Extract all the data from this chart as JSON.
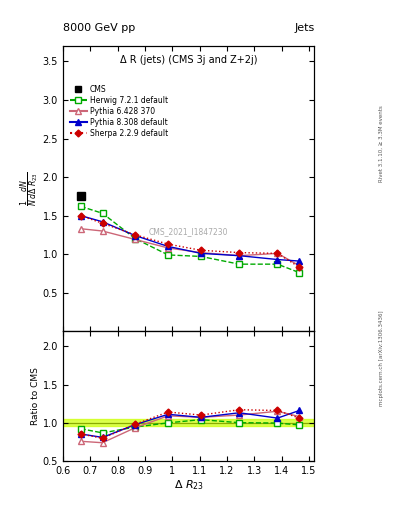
{
  "title_main": "Δ R (jets) (CMS 3j and Z+2j)",
  "header_left": "8000 GeV pp",
  "header_right": "Jets",
  "ylabel_main": "$\\frac{1}{N}\\frac{dN}{d\\Delta\\ R_{23}}$",
  "ylabel_ratio": "Ratio to CMS",
  "xlabel": "$\\Delta\\ R_{23}$",
  "xlim": [
    0.6,
    1.52
  ],
  "ylim_main": [
    0.0,
    3.7
  ],
  "ylim_ratio": [
    0.5,
    2.2
  ],
  "yticks_main": [
    0.5,
    1.0,
    1.5,
    2.0,
    2.5,
    3.0,
    3.5
  ],
  "yticks_ratio": [
    0.5,
    1.0,
    1.5,
    2.0
  ],
  "xticks": [
    0.6,
    0.7,
    0.8,
    0.9,
    1.0,
    1.1,
    1.2,
    1.3,
    1.4,
    1.5
  ],
  "watermark": "CMS_2021_I1847230",
  "right_label_top": "Rivet 3.1.10, ≥ 3.3M events",
  "right_label_bot": "mcplots.cern.ch [arXiv:1306.3436]",
  "cms_x": [
    0.665
  ],
  "cms_y": [
    1.76
  ],
  "herwig_x": [
    0.665,
    0.745,
    0.865,
    0.985,
    1.105,
    1.245,
    1.385,
    1.465
  ],
  "herwig_y": [
    1.62,
    1.53,
    1.2,
    0.99,
    0.97,
    0.87,
    0.87,
    0.76
  ],
  "pythia6_x": [
    0.665,
    0.745,
    0.865,
    0.985,
    1.105,
    1.245,
    1.385,
    1.465
  ],
  "pythia6_y": [
    1.33,
    1.3,
    1.19,
    1.08,
    1.02,
    0.98,
    1.01,
    0.85
  ],
  "pythia8_x": [
    0.665,
    0.745,
    0.865,
    0.985,
    1.105,
    1.245,
    1.385,
    1.465
  ],
  "pythia8_y": [
    1.5,
    1.42,
    1.24,
    1.1,
    1.01,
    0.98,
    0.93,
    0.91
  ],
  "sherpa_x": [
    0.665,
    0.745,
    0.865,
    0.985,
    1.105,
    1.245,
    1.385,
    1.465
  ],
  "sherpa_y": [
    1.5,
    1.4,
    1.25,
    1.13,
    1.05,
    1.02,
    1.01,
    0.83
  ],
  "herwig_ratio": [
    0.921,
    0.866,
    0.943,
    0.998,
    1.04,
    1.0,
    0.995,
    0.97
  ],
  "pythia6_ratio": [
    0.756,
    0.737,
    0.935,
    1.09,
    1.07,
    1.1,
    1.15,
    1.08
  ],
  "pythia8_ratio": [
    0.852,
    0.807,
    0.975,
    1.11,
    1.07,
    1.13,
    1.06,
    1.16
  ],
  "sherpa_ratio": [
    0.852,
    0.796,
    0.981,
    1.14,
    1.1,
    1.17,
    1.16,
    1.06
  ],
  "color_herwig": "#00aa00",
  "color_pythia6": "#cc6677",
  "color_pythia8": "#0000cc",
  "color_sherpa": "#cc0000",
  "color_cms": "#000000",
  "bg_color": "#ffffff"
}
